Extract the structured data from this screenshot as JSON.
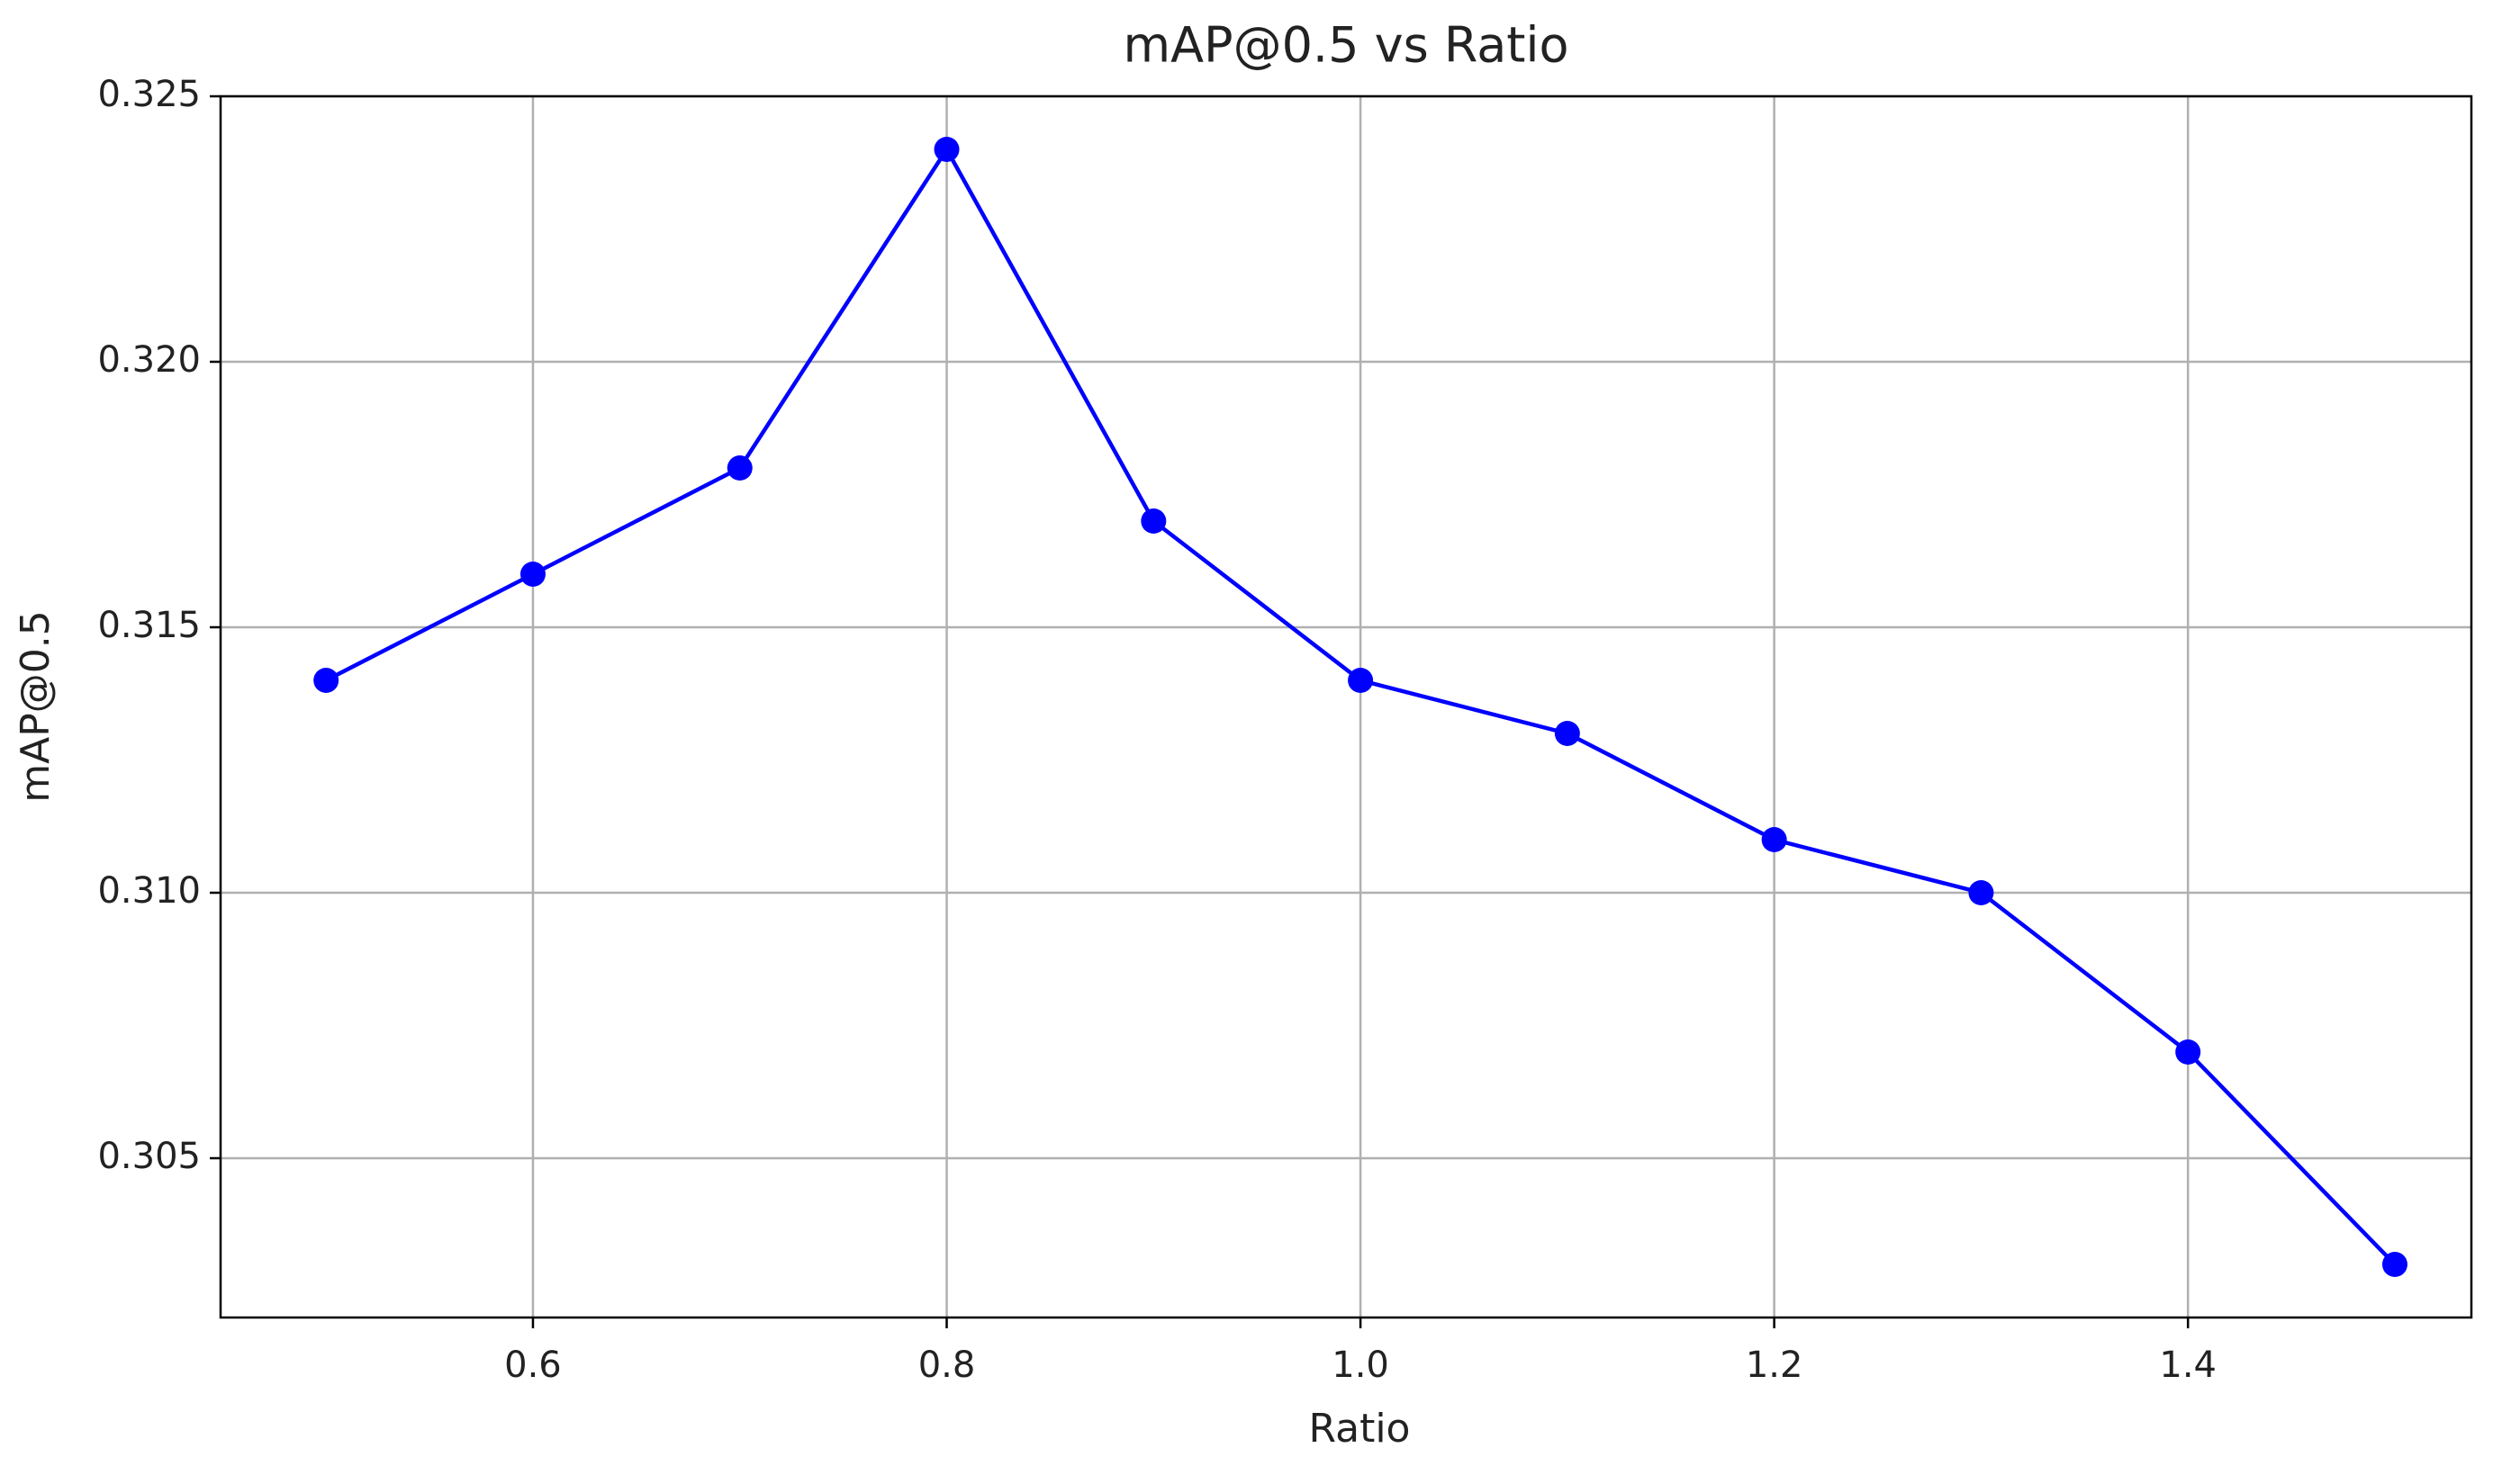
{
  "chart_data": {
    "type": "line",
    "title": "mAP@0.5 vs Ratio",
    "x_label": "Ratio",
    "y_label": "mAP@0.5",
    "x": [
      0.5,
      0.6,
      0.7,
      0.8,
      0.9,
      1.0,
      1.1,
      1.2,
      1.3,
      1.4,
      1.5
    ],
    "series": [
      {
        "name": "mAP@0.5",
        "color": "#0000ff",
        "values": [
          0.314,
          0.316,
          0.318,
          0.324,
          0.317,
          0.314,
          0.313,
          0.311,
          0.31,
          0.307,
          0.303
        ]
      }
    ],
    "xlim": [
      0.449,
      1.537
    ],
    "ylim": [
      0.302,
      0.325
    ],
    "xticks": [
      0.6,
      0.8,
      {
        "value": 1,
        "label": "1.0"
      },
      1.2,
      1.4
    ],
    "yticks": [
      0.305,
      {
        "value": 0.31,
        "label": "0.310"
      },
      0.315,
      {
        "value": 0.32,
        "label": "0.320"
      },
      0.325
    ],
    "grid": true
  }
}
